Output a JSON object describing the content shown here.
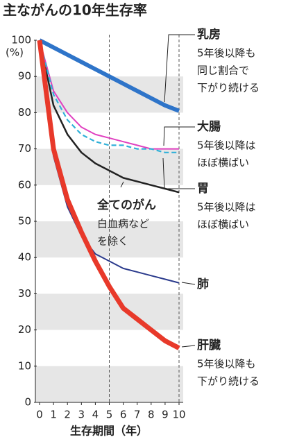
{
  "chart_data": {
    "type": "line",
    "title": "主ながんの10年生存率",
    "y_unit": "(%)",
    "x_label": "生存期間（年）",
    "x": [
      0,
      1,
      2,
      3,
      4,
      5,
      6,
      7,
      8,
      9,
      10
    ],
    "xlim": [
      0,
      10
    ],
    "xticks": [
      0,
      1,
      2,
      3,
      4,
      5,
      6,
      7,
      8,
      9,
      10
    ],
    "ylim": [
      0,
      100
    ],
    "yticks": [
      0,
      10,
      20,
      30,
      40,
      50,
      60,
      70,
      80,
      90,
      100
    ],
    "series": [
      {
        "name": "乳房",
        "color": "#2e74c9",
        "values": [
          100,
          98,
          96,
          94,
          92,
          90,
          88,
          86,
          84,
          82,
          80.5
        ]
      },
      {
        "name": "大腸",
        "color": "#e040c0",
        "values": [
          100,
          86,
          80,
          76,
          74,
          73,
          72,
          71,
          70,
          70,
          70
        ]
      },
      {
        "name": "胃",
        "color": "#30b0d8",
        "values": [
          100,
          85,
          78,
          74,
          72,
          71,
          71,
          70,
          70,
          69,
          69
        ]
      },
      {
        "name": "全てのがん",
        "color": "#222222",
        "values": [
          100,
          82,
          74,
          69,
          66,
          64,
          62,
          61,
          60,
          59,
          58
        ]
      },
      {
        "name": "肺",
        "color": "#2a3a8c",
        "values": [
          100,
          68,
          54,
          46,
          41,
          39,
          37,
          36,
          35,
          34,
          33
        ]
      },
      {
        "name": "肝臓",
        "color": "#e8392a",
        "values": [
          100,
          70,
          56,
          47,
          39,
          32,
          26,
          23,
          20,
          17,
          15
        ]
      }
    ],
    "annotations": [
      [
        "5年後以降も",
        "同じ割合で",
        "下がり続ける"
      ],
      [
        "5年後以降は",
        "ほぼ横ばい"
      ],
      [
        "5年後以降は",
        "ほぼ横ばい"
      ],
      [
        "白血病など",
        "を除く"
      ],
      [],
      [
        "5年後以降も",
        "下がり続ける"
      ]
    ]
  }
}
